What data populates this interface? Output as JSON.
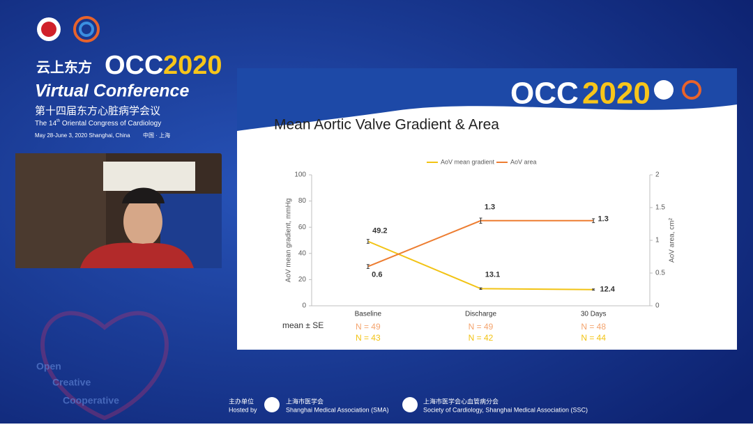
{
  "header": {
    "brand_cn": "云上东方",
    "brand": "OCC",
    "year": "2020",
    "subtitle": "Virtual Conference",
    "congress_cn": "第十四届东方心脏病学会议",
    "congress_en_pre": "The 14",
    "congress_en_sup": "th",
    "congress_en_post": " Oriental Congress of Cardiology",
    "dates": "May 28-June 3, 2020  Shanghai, China",
    "place_cn": "中国 · 上海"
  },
  "slide": {
    "brand": "OCC",
    "year": "2020"
  },
  "slogans": [
    "Open",
    "Creative",
    "Cooperative"
  ],
  "footer": {
    "host_cn": "主办单位",
    "host_en": "Hosted by",
    "org1_cn": "上海市医学会",
    "org1_en": "Shanghai Medical Association (SMA)",
    "org2_cn": "上海市医学会心血管病分会",
    "org2_en": "Society of Cardiology, Shanghai Medical Association (SSC)"
  },
  "chart_data": {
    "type": "line",
    "title": "Mean Aortic Valve Gradient & Area",
    "categories": [
      "Baseline",
      "Discharge",
      "30 Days"
    ],
    "series": [
      {
        "name": "AoV mean gradient",
        "color": "#f2c314",
        "values": [
          49.2,
          13.1,
          12.4
        ],
        "errors": [
          1.5,
          0.6,
          0.5
        ]
      },
      {
        "name": "AoV area",
        "color": "#ed7d31",
        "axis": "y2",
        "values": [
          0.6,
          1.3,
          1.3
        ],
        "errors": [
          0.03,
          0.04,
          0.03
        ]
      }
    ],
    "ylabel": "AoV mean gradient, mmHg",
    "y2label": "AoV area, cm²",
    "ylim": [
      0,
      100
    ],
    "yticks": [
      0,
      20,
      40,
      60,
      80,
      100
    ],
    "y2lim": [
      0,
      2
    ],
    "y2ticks": [
      0,
      0.5,
      1,
      1.5,
      2
    ],
    "legend": "top",
    "stat_label": "mean ± SE",
    "n_rows": [
      {
        "color": "#f4a46e",
        "labels": [
          "N = 49",
          "N = 49",
          "N = 48"
        ]
      },
      {
        "color": "#f2c314",
        "labels": [
          "N = 43",
          "N = 42",
          "N = 44"
        ]
      }
    ]
  }
}
